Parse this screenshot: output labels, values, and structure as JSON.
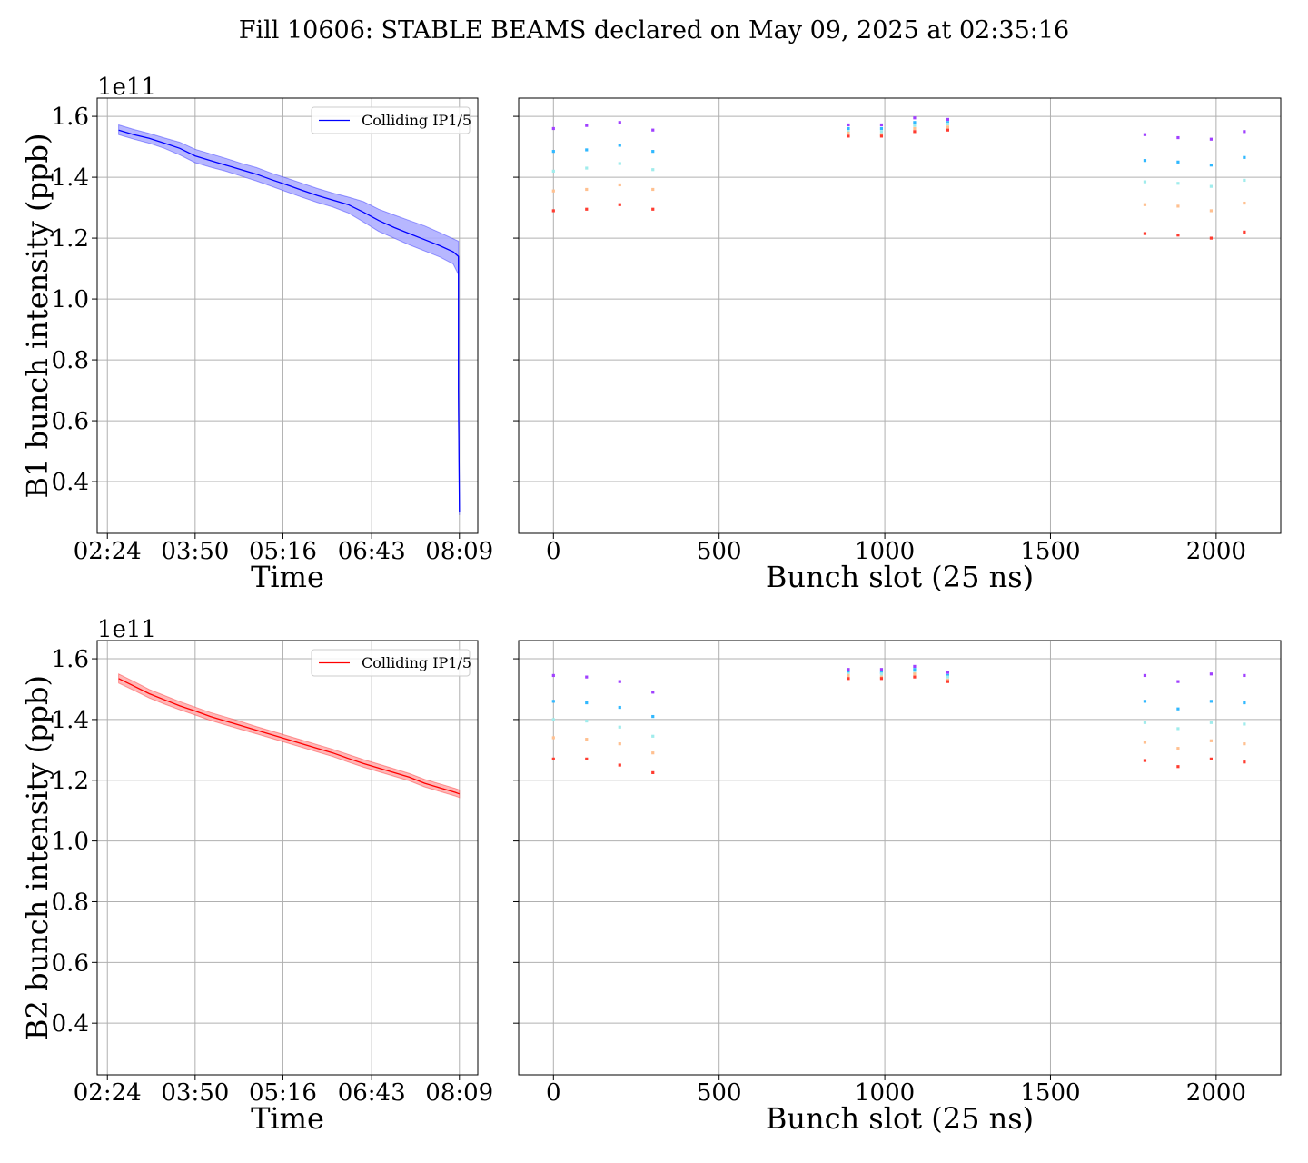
{
  "title": "Fill 10606: STABLE BEAMS declared on May 09, 2025 at 02:35:16",
  "colors": {
    "b1_line": "#0000ff",
    "b1_band": "#aaaaff",
    "b2_line": "#ff0000",
    "b2_band": "#ffaaaa",
    "grid": "#b0b0b0",
    "cmap": [
      "#a040ff",
      "#30b8ff",
      "#a0ecec",
      "#ffc090",
      "#ff3c30"
    ]
  },
  "chart_data": [
    {
      "id": "b1-time",
      "type": "line",
      "ylabel": "B1 bunch intensity (ppb)",
      "xlabel": "Time",
      "offset_text": "1e11",
      "legend": "Colliding IP1/5",
      "legend_position": "upper right",
      "grid": true,
      "xlim": [
        "02:14",
        "08:27"
      ],
      "ylim": [
        0.23,
        1.66
      ],
      "xticks": [
        "02:24",
        "03:50",
        "05:16",
        "06:43",
        "08:09"
      ],
      "yticks": [
        0.4,
        0.6,
        0.8,
        1.0,
        1.2,
        1.4,
        1.6
      ],
      "series": [
        {
          "name": "Colliding IP1/5",
          "x": [
            "02:35",
            "02:50",
            "03:05",
            "03:20",
            "03:35",
            "03:50",
            "04:05",
            "04:20",
            "04:35",
            "04:50",
            "05:05",
            "05:20",
            "05:35",
            "05:50",
            "06:05",
            "06:20",
            "06:35",
            "06:50",
            "07:05",
            "07:20",
            "07:35",
            "07:50",
            "08:03",
            "08:08",
            "08:08",
            "08:09"
          ],
          "y": [
            1.555,
            1.54,
            1.528,
            1.512,
            1.495,
            1.47,
            1.455,
            1.44,
            1.425,
            1.41,
            1.392,
            1.375,
            1.357,
            1.34,
            1.325,
            1.31,
            1.285,
            1.258,
            1.235,
            1.215,
            1.195,
            1.175,
            1.155,
            1.14,
            0.7,
            0.3
          ],
          "lower": [
            1.54,
            1.525,
            1.512,
            1.495,
            1.473,
            1.448,
            1.433,
            1.42,
            1.404,
            1.388,
            1.37,
            1.352,
            1.334,
            1.317,
            1.302,
            1.283,
            1.253,
            1.222,
            1.2,
            1.178,
            1.158,
            1.138,
            1.115,
            1.08,
            0.65,
            0.29
          ],
          "upper": [
            1.572,
            1.557,
            1.544,
            1.529,
            1.515,
            1.492,
            1.477,
            1.462,
            1.446,
            1.432,
            1.413,
            1.397,
            1.38,
            1.363,
            1.348,
            1.335,
            1.32,
            1.295,
            1.276,
            1.258,
            1.24,
            1.218,
            1.198,
            1.19,
            0.75,
            0.31
          ]
        }
      ]
    },
    {
      "id": "b1-bunch",
      "type": "scatter",
      "xlabel": "Bunch slot (25 ns)",
      "grid": true,
      "xlim": [
        -105,
        2195
      ],
      "ylim": [
        0.23,
        1.66
      ],
      "xticks": [
        0,
        500,
        1000,
        1500,
        2000
      ],
      "x": [
        0,
        100,
        200,
        300,
        890,
        990,
        1090,
        1190,
        1785,
        1885,
        1985,
        2085
      ],
      "series": [
        {
          "values": [
            1.56,
            1.57,
            1.58,
            1.555,
            1.572,
            1.572,
            1.595,
            1.59,
            1.54,
            1.53,
            1.525,
            1.55
          ]
        },
        {
          "values": [
            1.485,
            1.49,
            1.505,
            1.485,
            1.56,
            1.56,
            1.58,
            1.58,
            1.455,
            1.45,
            1.44,
            1.465
          ]
        },
        {
          "values": [
            1.42,
            1.43,
            1.445,
            1.425,
            1.55,
            1.55,
            1.57,
            1.575,
            1.385,
            1.38,
            1.37,
            1.39
          ]
        },
        {
          "values": [
            1.355,
            1.36,
            1.375,
            1.36,
            1.545,
            1.54,
            1.56,
            1.565,
            1.31,
            1.305,
            1.29,
            1.315
          ]
        },
        {
          "values": [
            1.29,
            1.295,
            1.31,
            1.295,
            1.535,
            1.535,
            1.55,
            1.555,
            1.215,
            1.21,
            1.2,
            1.22
          ]
        }
      ]
    },
    {
      "id": "b2-time",
      "type": "line",
      "ylabel": "B2 bunch intensity (ppb)",
      "xlabel": "Time",
      "offset_text": "1e11",
      "legend": "Colliding IP1/5",
      "legend_position": "upper right",
      "grid": true,
      "xlim": [
        "02:14",
        "08:27"
      ],
      "ylim": [
        0.23,
        1.66
      ],
      "xticks": [
        "02:24",
        "03:50",
        "05:16",
        "06:43",
        "08:09"
      ],
      "yticks": [
        0.4,
        0.6,
        0.8,
        1.0,
        1.2,
        1.4,
        1.6
      ],
      "series": [
        {
          "name": "Colliding IP1/5",
          "x": [
            "02:35",
            "02:50",
            "03:05",
            "03:20",
            "03:35",
            "03:50",
            "04:05",
            "04:20",
            "04:35",
            "04:50",
            "05:05",
            "05:20",
            "05:35",
            "05:50",
            "06:05",
            "06:20",
            "06:35",
            "06:50",
            "07:05",
            "07:20",
            "07:35",
            "07:50",
            "08:05",
            "08:09"
          ],
          "y": [
            1.535,
            1.51,
            1.485,
            1.465,
            1.445,
            1.428,
            1.41,
            1.395,
            1.38,
            1.365,
            1.35,
            1.335,
            1.32,
            1.305,
            1.29,
            1.272,
            1.255,
            1.24,
            1.225,
            1.21,
            1.19,
            1.175,
            1.16,
            1.155
          ],
          "lower": [
            1.52,
            1.496,
            1.471,
            1.451,
            1.432,
            1.415,
            1.397,
            1.382,
            1.367,
            1.353,
            1.338,
            1.323,
            1.308,
            1.293,
            1.278,
            1.26,
            1.243,
            1.228,
            1.213,
            1.198,
            1.178,
            1.163,
            1.148,
            1.143
          ],
          "upper": [
            1.55,
            1.525,
            1.499,
            1.479,
            1.459,
            1.441,
            1.423,
            1.408,
            1.393,
            1.377,
            1.362,
            1.347,
            1.332,
            1.317,
            1.302,
            1.285,
            1.268,
            1.253,
            1.238,
            1.222,
            1.203,
            1.188,
            1.173,
            1.168
          ]
        }
      ]
    },
    {
      "id": "b2-bunch",
      "type": "scatter",
      "xlabel": "Bunch slot (25 ns)",
      "grid": true,
      "xlim": [
        -105,
        2195
      ],
      "ylim": [
        0.23,
        1.66
      ],
      "xticks": [
        0,
        500,
        1000,
        1500,
        2000
      ],
      "x": [
        0,
        100,
        200,
        300,
        890,
        990,
        1090,
        1190,
        1785,
        1885,
        1985,
        2085
      ],
      "series": [
        {
          "values": [
            1.545,
            1.54,
            1.525,
            1.49,
            1.565,
            1.565,
            1.575,
            1.555,
            1.545,
            1.525,
            1.55,
            1.545
          ]
        },
        {
          "values": [
            1.46,
            1.455,
            1.44,
            1.41,
            1.555,
            1.555,
            1.565,
            1.545,
            1.46,
            1.435,
            1.46,
            1.455
          ]
        },
        {
          "values": [
            1.4,
            1.395,
            1.375,
            1.345,
            1.55,
            1.55,
            1.555,
            1.54,
            1.39,
            1.37,
            1.39,
            1.385
          ]
        },
        {
          "values": [
            1.34,
            1.335,
            1.32,
            1.29,
            1.545,
            1.54,
            1.55,
            1.53,
            1.325,
            1.305,
            1.33,
            1.32
          ]
        },
        {
          "values": [
            1.27,
            1.27,
            1.25,
            1.225,
            1.535,
            1.535,
            1.54,
            1.525,
            1.265,
            1.245,
            1.27,
            1.26
          ]
        }
      ]
    }
  ]
}
